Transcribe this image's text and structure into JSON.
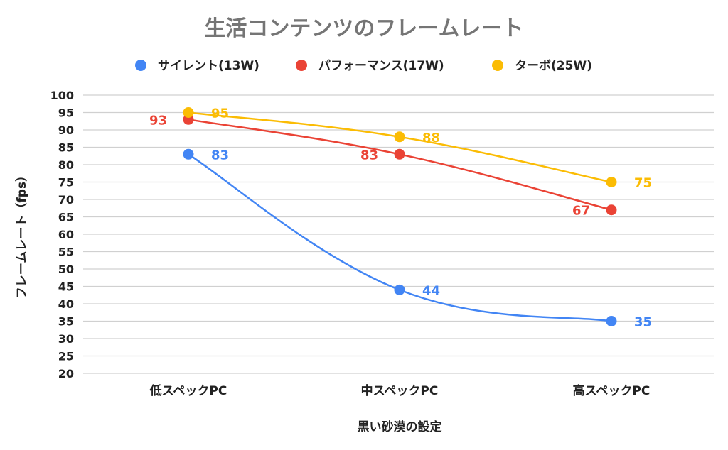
{
  "chart_data": {
    "type": "line",
    "title": "生活コンテンツのフレームレート",
    "xlabel": "黒い砂漠の設定",
    "ylabel": "フレームレート（fps）",
    "categories": [
      "低スペックPC",
      "中スペックPC",
      "高スペックPC"
    ],
    "ylim": [
      20,
      100
    ],
    "yticks": [
      20,
      25,
      30,
      35,
      40,
      45,
      50,
      55,
      60,
      65,
      70,
      75,
      80,
      85,
      90,
      95,
      100
    ],
    "grid": true,
    "legend_position": "top",
    "series": [
      {
        "name": "サイレント(13W)",
        "color": "#4285f4",
        "values": [
          83,
          44,
          35
        ],
        "label_side": "right"
      },
      {
        "name": "パフォーマンス(17W)",
        "color": "#ea4335",
        "values": [
          93,
          83,
          67
        ],
        "label_side": "left"
      },
      {
        "name": "ターボ(25W)",
        "color": "#fbbc04",
        "values": [
          95,
          88,
          75
        ],
        "label_side": "right"
      }
    ]
  }
}
